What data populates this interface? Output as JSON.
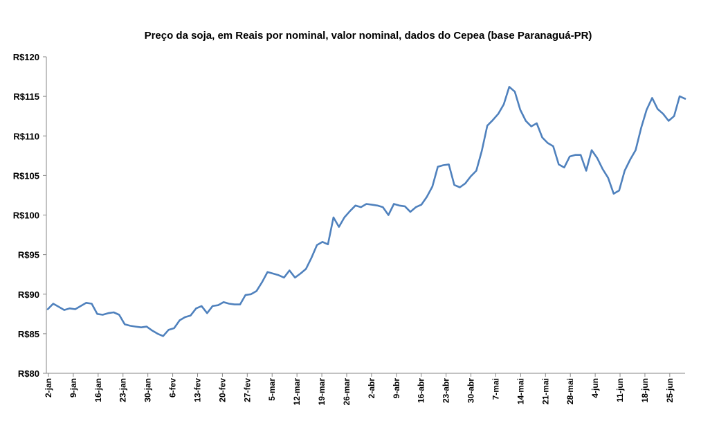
{
  "chart_data": {
    "type": "line",
    "title": "Preço da soja,  em Reais por nominal, valor nominal, dados do Cepea (base Paranaguá-PR)",
    "xlabel": "",
    "ylabel": "",
    "ylim": [
      80,
      120
    ],
    "grid": false,
    "legend": "none",
    "ytick_values": [
      80,
      85,
      90,
      95,
      100,
      105,
      110,
      115,
      120
    ],
    "ytick_labels": [
      "R$80",
      "R$85",
      "R$90",
      "R$95",
      "R$100",
      "R$105",
      "R$110",
      "R$115",
      "R$120"
    ],
    "xtick_labels": [
      "2-jan",
      "9-jan",
      "16-jan",
      "23-jan",
      "30-jan",
      "6-fev",
      "13-fev",
      "20-fev",
      "27-fev",
      "5-mar",
      "12-mar",
      "19-mar",
      "26-mar",
      "2-abr",
      "9-abr",
      "16-abr",
      "23-abr",
      "30-abr",
      "7-mai",
      "14-mai",
      "21-mai",
      "28-mai",
      "4-jun",
      "11-jun",
      "18-jun",
      "25-jun"
    ],
    "series": [
      {
        "color": "#4f81bd",
        "values": [
          88.1,
          88.8,
          88.4,
          88.0,
          88.2,
          88.1,
          88.5,
          88.9,
          88.8,
          87.5,
          87.4,
          87.6,
          87.7,
          87.4,
          86.2,
          86.0,
          85.9,
          85.8,
          85.9,
          85.4,
          85.0,
          84.7,
          85.5,
          85.7,
          86.7,
          87.1,
          87.3,
          88.2,
          88.5,
          87.6,
          88.5,
          88.6,
          89.0,
          88.8,
          88.7,
          88.7,
          89.9,
          90.0,
          90.4,
          91.5,
          92.8,
          92.6,
          92.4,
          92.1,
          93.0,
          92.1,
          92.6,
          93.2,
          94.6,
          96.2,
          96.6,
          96.3,
          99.7,
          98.5,
          99.7,
          100.5,
          101.2,
          101.0,
          101.4,
          101.3,
          101.2,
          101.0,
          100.0,
          101.4,
          101.2,
          101.1,
          100.4,
          101.0,
          101.3,
          102.3,
          103.6,
          106.1,
          106.3,
          106.4,
          103.8,
          103.5,
          104.0,
          104.9,
          105.6,
          108.1,
          111.3,
          112.0,
          112.8,
          114.0,
          116.2,
          115.6,
          113.3,
          111.9,
          111.2,
          111.6,
          109.8,
          109.1,
          108.7,
          106.4,
          106.0,
          107.4,
          107.6,
          107.6,
          105.6,
          108.2,
          107.2,
          105.8,
          104.7,
          102.7,
          103.1,
          105.6,
          107.0,
          108.2,
          111.0,
          113.3,
          114.8,
          113.4,
          112.8,
          111.9,
          112.5,
          115.0,
          114.7
        ]
      }
    ]
  }
}
